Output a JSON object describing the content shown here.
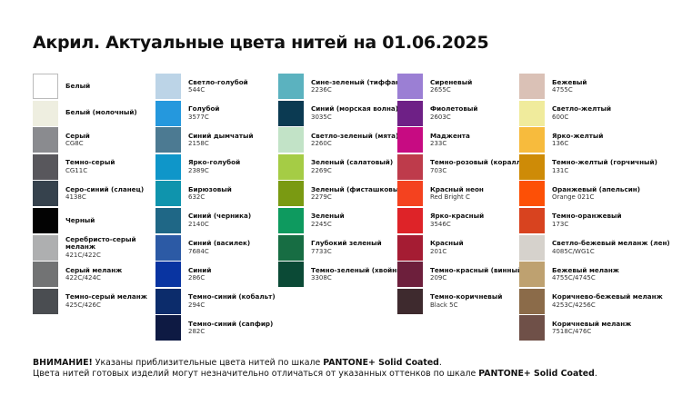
{
  "title": "Акрил. Актуальные цвета нитей на 01.06.2025",
  "columns": [
    [
      {
        "name": "Белый",
        "code": "",
        "color": "#ffffff",
        "border": true
      },
      {
        "name": "Белый (молочный)",
        "code": "",
        "color": "#eeeee0"
      },
      {
        "name": "Серый",
        "code": "CG8C",
        "color": "#8a8b8f"
      },
      {
        "name": "Темно-серый",
        "code": "CG11C",
        "color": "#58575c"
      },
      {
        "name": "Серо-синий (сланец)",
        "code": "4138C",
        "color": "#36424d"
      },
      {
        "name": "Черный",
        "code": "",
        "color": "#030303"
      },
      {
        "name": "Серебристо-серый меланж",
        "code": "421C/422C",
        "color": "#aeafb0"
      },
      {
        "name": "Серый меланж",
        "code": "422C/424C",
        "color": "#727374"
      },
      {
        "name": "Темно-серый меланж",
        "code": "425C/426C",
        "color": "#4a4d51"
      }
    ],
    [
      {
        "name": "Светло-голубой",
        "code": "544C",
        "color": "#bcd4e7"
      },
      {
        "name": "Голубой",
        "code": "3577C",
        "color": "#2598dd"
      },
      {
        "name": "Синий дымчатый",
        "code": "2158C",
        "color": "#4c7a92"
      },
      {
        "name": "Ярко-голубой",
        "code": "2389C",
        "color": "#0f96c9"
      },
      {
        "name": "Бирюзовый",
        "code": "632C",
        "color": "#0f94ad"
      },
      {
        "name": "Синий (черника)",
        "code": "2140C",
        "color": "#1f6786"
      },
      {
        "name": "Синий (василек)",
        "code": "7684C",
        "color": "#2c5aa5"
      },
      {
        "name": "Синий",
        "code": "286C",
        "color": "#0934a1"
      },
      {
        "name": "Темно-синий (кобальт)",
        "code": "294C",
        "color": "#0c2c6b"
      },
      {
        "name": "Темно-синий (сапфир)",
        "code": "282C",
        "color": "#0e1a43"
      }
    ],
    [
      {
        "name": "Сине-зеленый (тиффани)",
        "code": "2236C",
        "color": "#5bb2bf"
      },
      {
        "name": "Синий (морская волна)",
        "code": "3035C",
        "color": "#0b3a52"
      },
      {
        "name": "Светло-зеленый (мята)",
        "code": "2260C",
        "color": "#c2e3c7"
      },
      {
        "name": "Зеленый (салатовый)",
        "code": "2269C",
        "color": "#a5cc45"
      },
      {
        "name": "Зеленый (фисташковый)",
        "code": "2279C",
        "color": "#7a9a12"
      },
      {
        "name": "Зеленый",
        "code": "2245C",
        "color": "#0e9a5f"
      },
      {
        "name": "Глубокий зеленый",
        "code": "7733C",
        "color": "#176d43"
      },
      {
        "name": "Темно-зеленый (хвойный)",
        "code": "3308C",
        "color": "#0b4a36"
      }
    ],
    [
      {
        "name": "Сиреневый",
        "code": "2655C",
        "color": "#9b7fd4"
      },
      {
        "name": "Фиолетовый",
        "code": "2603C",
        "color": "#6e2086"
      },
      {
        "name": "Маджента",
        "code": "233C",
        "color": "#c70b82"
      },
      {
        "name": "Темно-розовый (коралл)",
        "code": "703C",
        "color": "#be3b4b"
      },
      {
        "name": "Красный неон",
        "code": "Red Bright C",
        "color": "#f4421f"
      },
      {
        "name": "Ярко-красный",
        "code": "3546C",
        "color": "#de2328"
      },
      {
        "name": "Красный",
        "code": "201C",
        "color": "#a51c33"
      },
      {
        "name": "Темно-красный (винный)",
        "code": "209C",
        "color": "#6d1f3c"
      },
      {
        "name": "Темно-коричневый",
        "code": "Black 5C",
        "color": "#3e2a2e"
      }
    ],
    [
      {
        "name": "Бежевый",
        "code": "4755C",
        "color": "#dac1b6"
      },
      {
        "name": "Светло-желтый",
        "code": "600C",
        "color": "#f0eb9c"
      },
      {
        "name": "Ярко-желтый",
        "code": "136C",
        "color": "#f7bb3d"
      },
      {
        "name": "Темно-желтый (горчичный)",
        "code": "131C",
        "color": "#ce8b07"
      },
      {
        "name": "Оранжевый (апельсин)",
        "code": "Orange 021C",
        "color": "#fd5006"
      },
      {
        "name": "Темно-оранжевый",
        "code": "173C",
        "color": "#d8431f"
      },
      {
        "name": "Светло-бежевый меланж (лен)",
        "code": "4085C/WG1C",
        "color": "#d6d2cc"
      },
      {
        "name": "Бежевый меланж",
        "code": "4755C/4745C",
        "color": "#bea170"
      },
      {
        "name": "Коричнево-бежевый меланж",
        "code": "4253C/4256C",
        "color": "#8b6b49"
      },
      {
        "name": "Коричневый меланж",
        "code": "7518C/476C",
        "color": "#6f5048"
      }
    ]
  ],
  "footer": {
    "line1_bold": "ВНИМАНИЕ!",
    "line1_text": " Указаны приблизительные цвета нитей по шкале ",
    "line1_brand": "PANTONE+ Solid Coated",
    "line1_end": ".",
    "line2_text": "Цвета нитей готовых изделий могут незначительно отличаться от указанных оттенков по шкале ",
    "line2_brand": "PANTONE+ Solid Coated",
    "line2_end": "."
  }
}
